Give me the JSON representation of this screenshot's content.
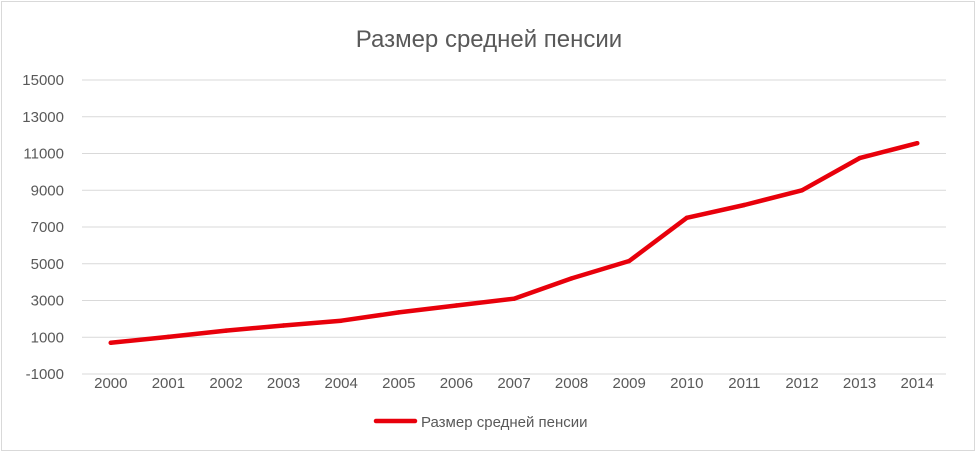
{
  "chart_data": {
    "type": "line",
    "title": "Размер средней пенсии",
    "categories": [
      "2000",
      "2001",
      "2002",
      "2003",
      "2004",
      "2005",
      "2006",
      "2007",
      "2008",
      "2009",
      "2010",
      "2011",
      "2012",
      "2013",
      "2014"
    ],
    "series": [
      {
        "name": "Размер средней пенсии",
        "values": [
          700,
          1020,
          1360,
          1640,
          1900,
          2350,
          2730,
          3100,
          4200,
          5150,
          7500,
          8200,
          9000,
          10750,
          11560
        ]
      }
    ],
    "y_ticks": [
      "15000",
      "13000",
      "11000",
      "9000",
      "7000",
      "5000",
      "3000",
      "1000",
      "-1000"
    ],
    "ylim": [
      -1000,
      15000
    ],
    "grid": true,
    "legend_position": "bottom",
    "line_color": "#e8000b",
    "grid_color": "#d9d9d9",
    "text_color": "#595959"
  }
}
